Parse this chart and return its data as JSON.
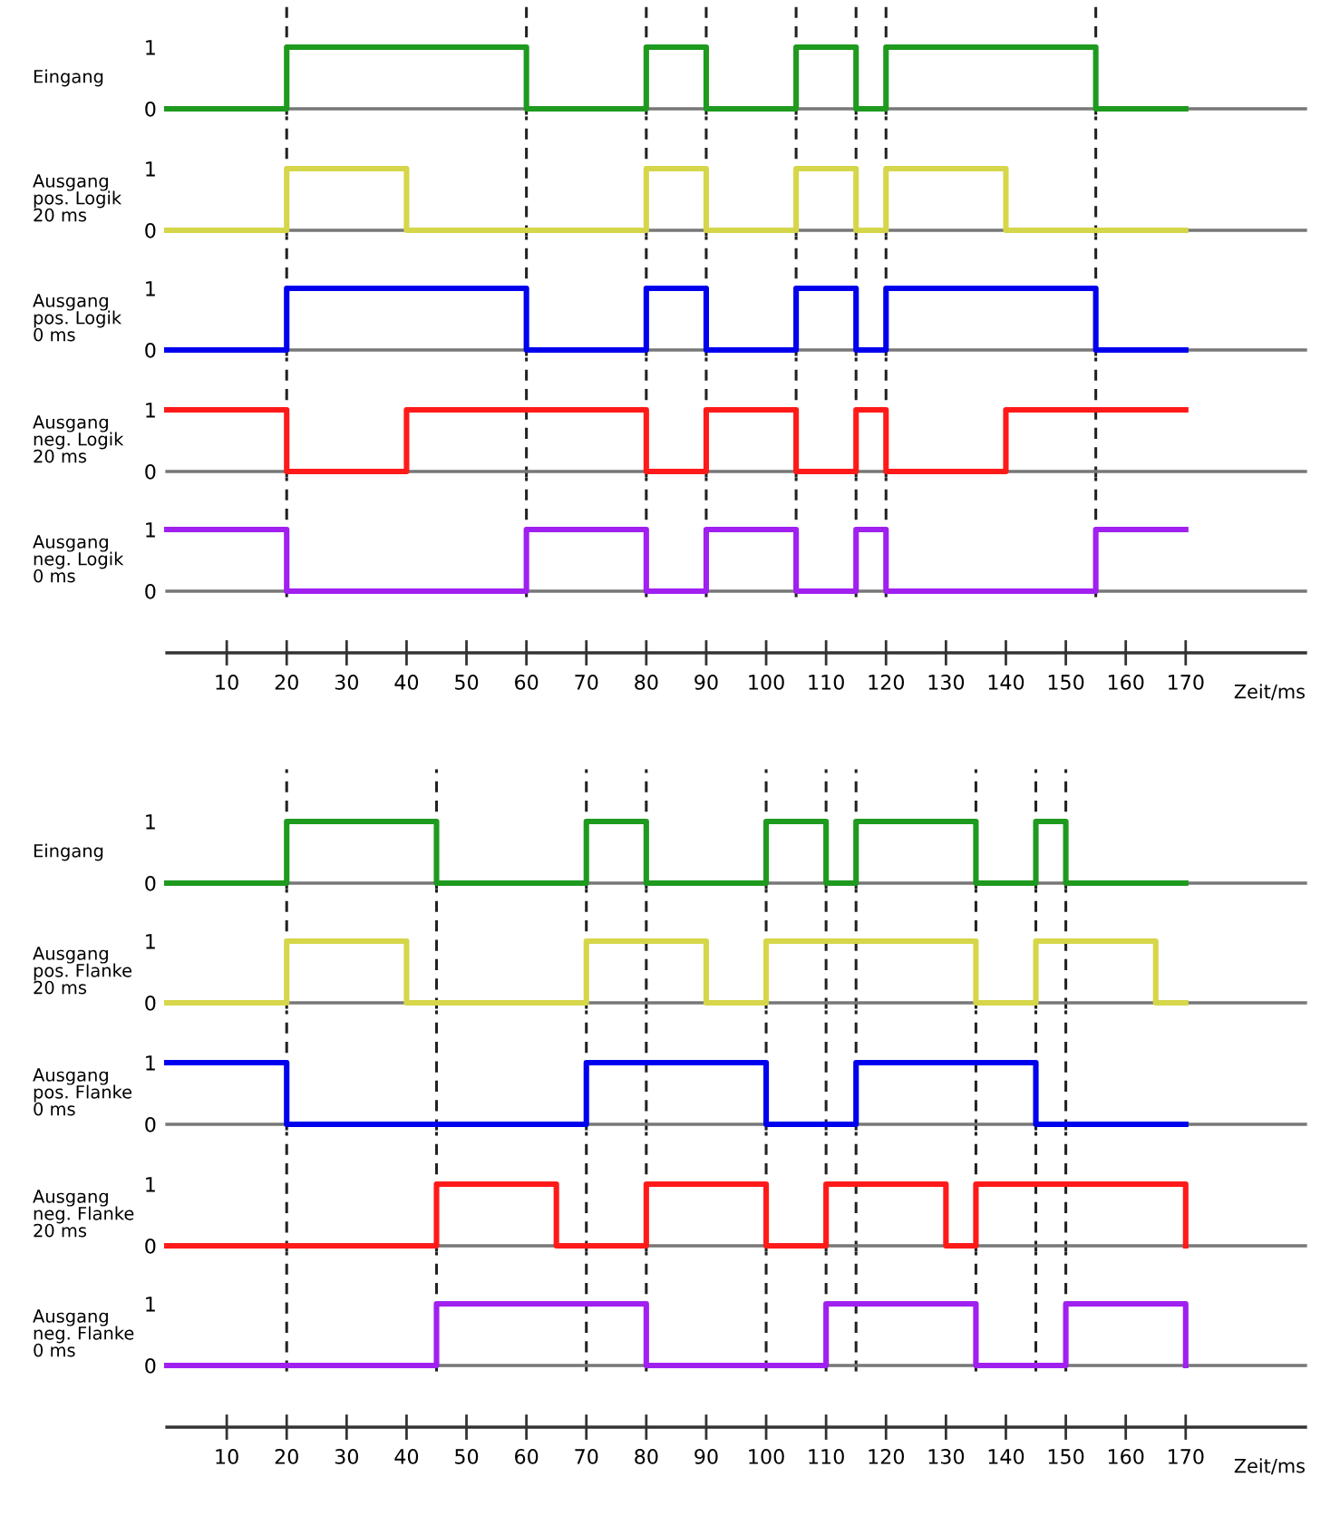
{
  "chart_data": [
    {
      "type": "step",
      "ylabel": "Eingang",
      "xlim": [
        0,
        190
      ],
      "ylim": [
        -0.1,
        1.85
      ],
      "yticks": [
        0,
        1
      ],
      "tick_labels": "y",
      "grid": false,
      "series": [
        {
          "color": "#1e9a1e",
          "x": [
            0,
            20,
            60,
            80,
            90,
            105,
            115,
            120,
            155,
            170
          ],
          "values": [
            0,
            1,
            0,
            1,
            0,
            1,
            0,
            1,
            0,
            0
          ]
        }
      ],
      "ref_lines": [
        {
          "axis": "x",
          "value": 20,
          "line_style": "dashed"
        },
        {
          "axis": "x",
          "value": 60,
          "line_style": "dashed"
        },
        {
          "axis": "x",
          "value": 80,
          "line_style": "dashed"
        },
        {
          "axis": "x",
          "value": 90,
          "line_style": "dashed"
        },
        {
          "axis": "x",
          "value": 105,
          "line_style": "dashed"
        },
        {
          "axis": "x",
          "value": 115,
          "line_style": "dashed"
        },
        {
          "axis": "x",
          "value": 120,
          "line_style": "dashed"
        },
        {
          "axis": "x",
          "value": 155,
          "line_style": "dashed"
        }
      ]
    },
    {
      "type": "step",
      "ylabel": "Ausgang\npos. Logik\n20 ms",
      "xlim": [
        0,
        190
      ],
      "ylim": [
        -0.1,
        1.85
      ],
      "yticks": [
        0,
        1
      ],
      "tick_labels": "y",
      "grid": false,
      "series": [
        {
          "color": "#d6d64a",
          "x": [
            0,
            20,
            40,
            80,
            90,
            105,
            115,
            120,
            140,
            170
          ],
          "values": [
            0,
            1,
            0,
            1,
            0,
            1,
            0,
            1,
            0,
            0
          ]
        }
      ],
      "ref_lines": [
        {
          "axis": "x",
          "value": 20,
          "line_style": "dashed"
        },
        {
          "axis": "x",
          "value": 60,
          "line_style": "dashed"
        },
        {
          "axis": "x",
          "value": 80,
          "line_style": "dashed"
        },
        {
          "axis": "x",
          "value": 90,
          "line_style": "dashed"
        },
        {
          "axis": "x",
          "value": 105,
          "line_style": "dashed"
        },
        {
          "axis": "x",
          "value": 115,
          "line_style": "dashed"
        },
        {
          "axis": "x",
          "value": 120,
          "line_style": "dashed"
        },
        {
          "axis": "x",
          "value": 155,
          "line_style": "dashed"
        }
      ]
    },
    {
      "type": "step",
      "ylabel": "Ausgang\npos. Logik\n0 ms",
      "xlim": [
        0,
        190
      ],
      "ylim": [
        -0.1,
        1.85
      ],
      "yticks": [
        0,
        1
      ],
      "tick_labels": "y",
      "grid": false,
      "series": [
        {
          "color": "#0000ee",
          "x": [
            0,
            20,
            60,
            80,
            90,
            105,
            115,
            120,
            155,
            170
          ],
          "values": [
            0,
            1,
            0,
            1,
            0,
            1,
            0,
            1,
            0,
            0
          ]
        }
      ],
      "ref_lines": [
        {
          "axis": "x",
          "value": 20,
          "line_style": "dashed"
        },
        {
          "axis": "x",
          "value": 60,
          "line_style": "dashed"
        },
        {
          "axis": "x",
          "value": 80,
          "line_style": "dashed"
        },
        {
          "axis": "x",
          "value": 90,
          "line_style": "dashed"
        },
        {
          "axis": "x",
          "value": 105,
          "line_style": "dashed"
        },
        {
          "axis": "x",
          "value": 115,
          "line_style": "dashed"
        },
        {
          "axis": "x",
          "value": 120,
          "line_style": "dashed"
        },
        {
          "axis": "x",
          "value": 155,
          "line_style": "dashed"
        }
      ]
    },
    {
      "type": "step",
      "ylabel": "Ausgang\nneg. Logik\n20 ms",
      "xlim": [
        0,
        190
      ],
      "ylim": [
        -0.1,
        1.85
      ],
      "yticks": [
        0,
        1
      ],
      "tick_labels": "y",
      "grid": false,
      "series": [
        {
          "color": "#ff1a1a",
          "x": [
            0,
            20,
            40,
            80,
            90,
            105,
            115,
            120,
            140,
            170
          ],
          "values": [
            1,
            0,
            1,
            0,
            1,
            0,
            1,
            0,
            1,
            1
          ]
        }
      ],
      "ref_lines": [
        {
          "axis": "x",
          "value": 20,
          "line_style": "dashed"
        },
        {
          "axis": "x",
          "value": 60,
          "line_style": "dashed"
        },
        {
          "axis": "x",
          "value": 80,
          "line_style": "dashed"
        },
        {
          "axis": "x",
          "value": 90,
          "line_style": "dashed"
        },
        {
          "axis": "x",
          "value": 105,
          "line_style": "dashed"
        },
        {
          "axis": "x",
          "value": 115,
          "line_style": "dashed"
        },
        {
          "axis": "x",
          "value": 120,
          "line_style": "dashed"
        },
        {
          "axis": "x",
          "value": 155,
          "line_style": "dashed"
        }
      ]
    },
    {
      "type": "step",
      "ylabel": "Ausgang\nneg. Logik\n0 ms",
      "xlabel": "Zeit/ms",
      "xlim": [
        0,
        190
      ],
      "xticks": [
        10,
        20,
        30,
        40,
        50,
        60,
        70,
        80,
        90,
        100,
        110,
        120,
        130,
        140,
        150,
        160,
        170
      ],
      "ylim": [
        -0.1,
        1.85
      ],
      "yticks": [
        0,
        1
      ],
      "grid": false,
      "series": [
        {
          "color": "#a020f0",
          "x": [
            0,
            20,
            60,
            80,
            90,
            105,
            115,
            120,
            155,
            170
          ],
          "values": [
            1,
            0,
            1,
            0,
            1,
            0,
            1,
            0,
            1,
            1
          ]
        }
      ],
      "ref_lines": [
        {
          "axis": "x",
          "value": 20,
          "line_style": "dashed"
        },
        {
          "axis": "x",
          "value": 60,
          "line_style": "dashed"
        },
        {
          "axis": "x",
          "value": 80,
          "line_style": "dashed"
        },
        {
          "axis": "x",
          "value": 90,
          "line_style": "dashed"
        },
        {
          "axis": "x",
          "value": 105,
          "line_style": "dashed"
        },
        {
          "axis": "x",
          "value": 115,
          "line_style": "dashed"
        },
        {
          "axis": "x",
          "value": 120,
          "line_style": "dashed"
        },
        {
          "axis": "x",
          "value": 155,
          "line_style": "dashed"
        }
      ]
    },
    {
      "type": "step",
      "ylabel": "Eingang",
      "xlim": [
        0,
        190
      ],
      "ylim": [
        -0.1,
        1.85
      ],
      "yticks": [
        0,
        1
      ],
      "tick_labels": "y",
      "grid": false,
      "series": [
        {
          "color": "#1e9a1e",
          "x": [
            0,
            20,
            45,
            70,
            80,
            100,
            110,
            115,
            135,
            145,
            150,
            170
          ],
          "values": [
            0,
            1,
            0,
            1,
            0,
            1,
            0,
            1,
            0,
            1,
            0,
            0
          ]
        }
      ],
      "ref_lines": [
        {
          "axis": "x",
          "value": 20,
          "line_style": "dashed"
        },
        {
          "axis": "x",
          "value": 45,
          "line_style": "dashed"
        },
        {
          "axis": "x",
          "value": 70,
          "line_style": "dashed"
        },
        {
          "axis": "x",
          "value": 80,
          "line_style": "dashed"
        },
        {
          "axis": "x",
          "value": 100,
          "line_style": "dashed"
        },
        {
          "axis": "x",
          "value": 110,
          "line_style": "dashed"
        },
        {
          "axis": "x",
          "value": 115,
          "line_style": "dashed"
        },
        {
          "axis": "x",
          "value": 135,
          "line_style": "dashed"
        },
        {
          "axis": "x",
          "value": 145,
          "line_style": "dashed"
        },
        {
          "axis": "x",
          "value": 150,
          "line_style": "dashed"
        }
      ]
    },
    {
      "type": "step",
      "ylabel": "Ausgang\npos. Flanke\n20 ms",
      "xlim": [
        0,
        190
      ],
      "ylim": [
        -0.1,
        1.85
      ],
      "yticks": [
        0,
        1
      ],
      "tick_labels": "y",
      "grid": false,
      "series": [
        {
          "color": "#d6d64a",
          "x": [
            0,
            20,
            40,
            70,
            90,
            100,
            135,
            145,
            165,
            170
          ],
          "values": [
            0,
            1,
            0,
            1,
            0,
            1,
            0,
            1,
            0,
            0
          ]
        }
      ],
      "ref_lines": [
        {
          "axis": "x",
          "value": 20,
          "line_style": "dashed"
        },
        {
          "axis": "x",
          "value": 45,
          "line_style": "dashed"
        },
        {
          "axis": "x",
          "value": 70,
          "line_style": "dashed"
        },
        {
          "axis": "x",
          "value": 80,
          "line_style": "dashed"
        },
        {
          "axis": "x",
          "value": 100,
          "line_style": "dashed"
        },
        {
          "axis": "x",
          "value": 110,
          "line_style": "dashed"
        },
        {
          "axis": "x",
          "value": 115,
          "line_style": "dashed"
        },
        {
          "axis": "x",
          "value": 135,
          "line_style": "dashed"
        },
        {
          "axis": "x",
          "value": 145,
          "line_style": "dashed"
        },
        {
          "axis": "x",
          "value": 150,
          "line_style": "dashed"
        }
      ]
    },
    {
      "type": "step",
      "ylabel": "Ausgang\npos. Flanke\n0 ms",
      "xlim": [
        0,
        190
      ],
      "ylim": [
        -0.1,
        1.85
      ],
      "yticks": [
        0,
        1
      ],
      "tick_labels": "y",
      "grid": false,
      "series": [
        {
          "color": "#0000ee",
          "x": [
            0,
            20,
            70,
            100,
            115,
            145,
            170
          ],
          "values": [
            1,
            0,
            1,
            0,
            1,
            0,
            0
          ]
        }
      ],
      "ref_lines": [
        {
          "axis": "x",
          "value": 20,
          "line_style": "dashed"
        },
        {
          "axis": "x",
          "value": 45,
          "line_style": "dashed"
        },
        {
          "axis": "x",
          "value": 70,
          "line_style": "dashed"
        },
        {
          "axis": "x",
          "value": 80,
          "line_style": "dashed"
        },
        {
          "axis": "x",
          "value": 100,
          "line_style": "dashed"
        },
        {
          "axis": "x",
          "value": 110,
          "line_style": "dashed"
        },
        {
          "axis": "x",
          "value": 115,
          "line_style": "dashed"
        },
        {
          "axis": "x",
          "value": 135,
          "line_style": "dashed"
        },
        {
          "axis": "x",
          "value": 145,
          "line_style": "dashed"
        },
        {
          "axis": "x",
          "value": 150,
          "line_style": "dashed"
        }
      ]
    },
    {
      "type": "step",
      "ylabel": "Ausgang\nneg. Flanke\n20 ms",
      "xlim": [
        0,
        190
      ],
      "ylim": [
        -0.1,
        1.85
      ],
      "yticks": [
        0,
        1
      ],
      "tick_labels": "y",
      "grid": false,
      "series": [
        {
          "color": "#ff1a1a",
          "x": [
            0,
            45,
            65,
            80,
            100,
            110,
            130,
            135,
            170
          ],
          "values": [
            0,
            1,
            0,
            1,
            0,
            1,
            0,
            1,
            0
          ]
        }
      ],
      "ref_lines": [
        {
          "axis": "x",
          "value": 20,
          "line_style": "dashed"
        },
        {
          "axis": "x",
          "value": 45,
          "line_style": "dashed"
        },
        {
          "axis": "x",
          "value": 70,
          "line_style": "dashed"
        },
        {
          "axis": "x",
          "value": 80,
          "line_style": "dashed"
        },
        {
          "axis": "x",
          "value": 100,
          "line_style": "dashed"
        },
        {
          "axis": "x",
          "value": 110,
          "line_style": "dashed"
        },
        {
          "axis": "x",
          "value": 115,
          "line_style": "dashed"
        },
        {
          "axis": "x",
          "value": 135,
          "line_style": "dashed"
        },
        {
          "axis": "x",
          "value": 145,
          "line_style": "dashed"
        },
        {
          "axis": "x",
          "value": 150,
          "line_style": "dashed"
        }
      ]
    },
    {
      "type": "step",
      "ylabel": "Ausgang\nneg. Flanke\n0 ms",
      "xlabel": "Zeit/ms",
      "xlim": [
        0,
        190
      ],
      "xticks": [
        10,
        20,
        30,
        40,
        50,
        60,
        70,
        80,
        90,
        100,
        110,
        120,
        130,
        140,
        150,
        160,
        170
      ],
      "ylim": [
        -0.1,
        1.85
      ],
      "yticks": [
        0,
        1
      ],
      "grid": false,
      "series": [
        {
          "color": "#a020f0",
          "x": [
            0,
            45,
            80,
            110,
            135,
            150,
            170
          ],
          "values": [
            0,
            1,
            0,
            1,
            0,
            1,
            0
          ]
        }
      ],
      "ref_lines": [
        {
          "axis": "x",
          "value": 20,
          "line_style": "dashed"
        },
        {
          "axis": "x",
          "value": 45,
          "line_style": "dashed"
        },
        {
          "axis": "x",
          "value": 70,
          "line_style": "dashed"
        },
        {
          "axis": "x",
          "value": 80,
          "line_style": "dashed"
        },
        {
          "axis": "x",
          "value": 100,
          "line_style": "dashed"
        },
        {
          "axis": "x",
          "value": 110,
          "line_style": "dashed"
        },
        {
          "axis": "x",
          "value": 115,
          "line_style": "dashed"
        },
        {
          "axis": "x",
          "value": 135,
          "line_style": "dashed"
        },
        {
          "axis": "x",
          "value": 145,
          "line_style": "dashed"
        },
        {
          "axis": "x",
          "value": 150,
          "line_style": "dashed"
        }
      ]
    }
  ]
}
